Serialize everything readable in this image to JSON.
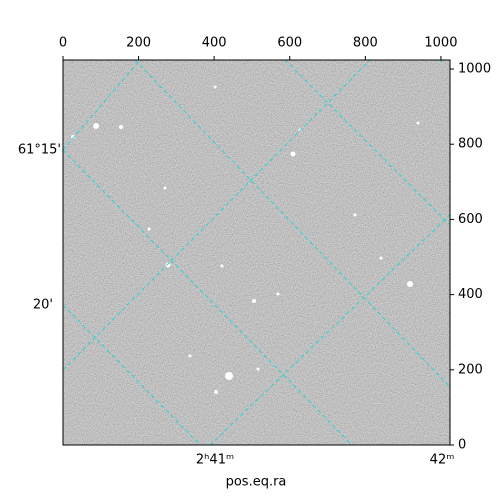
{
  "chart_data": {
    "type": "image",
    "xlabel": "pos.eq.ra",
    "xlim": [
      0,
      1024
    ],
    "ylim": [
      0,
      1024
    ],
    "xticks": [
      0,
      200,
      400,
      600,
      800,
      1000
    ],
    "yticks": [
      0,
      200,
      400,
      600,
      800,
      1000
    ],
    "dec_labels": [
      "61°15'",
      "20'"
    ],
    "ra_labels": [
      "2ʰ41ᵐ",
      "42ᵐ"
    ]
  }
}
